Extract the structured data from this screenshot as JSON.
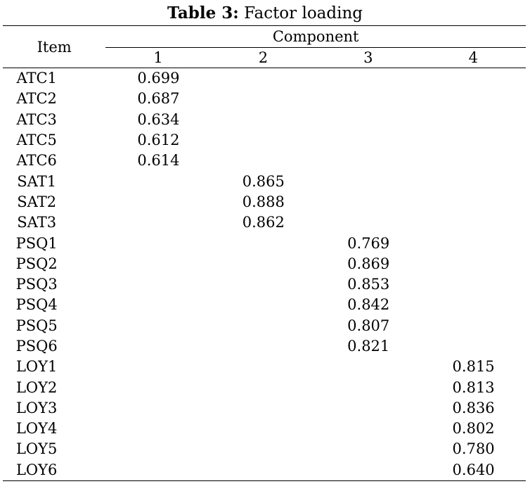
{
  "caption": {
    "label": "Table 3:",
    "title": "Factor loading"
  },
  "header": {
    "item": "Item",
    "component": "Component",
    "columns": [
      "1",
      "2",
      "3",
      "4"
    ]
  },
  "rows": [
    {
      "item": "ATC1",
      "values": [
        "0.699",
        "",
        "",
        ""
      ]
    },
    {
      "item": "ATC2",
      "values": [
        "0.687",
        "",
        "",
        ""
      ]
    },
    {
      "item": "ATC3",
      "values": [
        "0.634",
        "",
        "",
        ""
      ]
    },
    {
      "item": "ATC5",
      "values": [
        "0.612",
        "",
        "",
        ""
      ]
    },
    {
      "item": "ATC6",
      "values": [
        "0.614",
        "",
        "",
        ""
      ]
    },
    {
      "item": "SAT1",
      "values": [
        "",
        "0.865",
        "",
        ""
      ]
    },
    {
      "item": "SAT2",
      "values": [
        "",
        "0.888",
        "",
        ""
      ]
    },
    {
      "item": "SAT3",
      "values": [
        "",
        "0.862",
        "",
        ""
      ]
    },
    {
      "item": "PSQ1",
      "values": [
        "",
        "",
        "0.769",
        ""
      ]
    },
    {
      "item": "PSQ2",
      "values": [
        "",
        "",
        "0.869",
        ""
      ]
    },
    {
      "item": "PSQ3",
      "values": [
        "",
        "",
        "0.853",
        ""
      ]
    },
    {
      "item": "PSQ4",
      "values": [
        "",
        "",
        "0.842",
        ""
      ]
    },
    {
      "item": "PSQ5",
      "values": [
        "",
        "",
        "0.807",
        ""
      ]
    },
    {
      "item": "PSQ6",
      "values": [
        "",
        "",
        "0.821",
        ""
      ]
    },
    {
      "item": "LOY1",
      "values": [
        "",
        "",
        "",
        "0.815"
      ]
    },
    {
      "item": "LOY2",
      "values": [
        "",
        "",
        "",
        "0.813"
      ]
    },
    {
      "item": "LOY3",
      "values": [
        "",
        "",
        "",
        "0.836"
      ]
    },
    {
      "item": "LOY4",
      "values": [
        "",
        "",
        "",
        "0.802"
      ]
    },
    {
      "item": "LOY5",
      "values": [
        "",
        "",
        "",
        "0.780"
      ]
    },
    {
      "item": "LOY6",
      "values": [
        "",
        "",
        "",
        "0.640"
      ]
    }
  ]
}
